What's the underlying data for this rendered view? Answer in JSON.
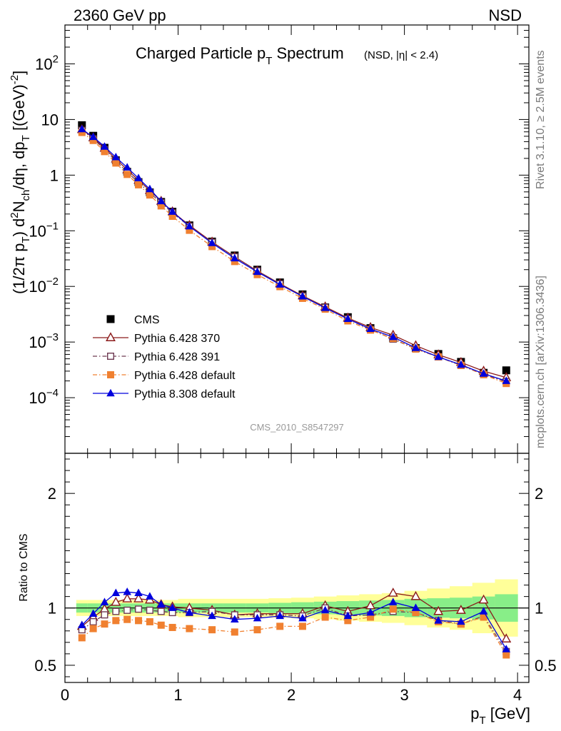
{
  "header": {
    "left": "2360 GeV pp",
    "right": "NSD"
  },
  "side_text": {
    "rivet": "Rivet 3.1.10, ≥ 2.5M events",
    "source": "mcplots.cern.ch [arXiv:1306.3436]"
  },
  "watermark": "CMS_2010_S8547297",
  "chart_data": [
    {
      "type": "scatter",
      "panel": "main",
      "title": "Charged Particle pT Spectrum",
      "title_main": "Charged Particle p",
      "title_sub": "T",
      "title_rest": " Spectrum",
      "title_cut": "(NSD, |η| < 2.4)",
      "ylabel": "(1/2π pT) d²Nch/dη, dpT [(GeV)⁻²]",
      "ylog": true,
      "ylim": [
        1e-05,
        500
      ],
      "xlim": [
        0,
        4.1
      ],
      "yticks": [
        {
          "value": 0.0001,
          "base": "10",
          "exp": "−4"
        },
        {
          "value": 0.001,
          "base": "10",
          "exp": "−3"
        },
        {
          "value": 0.01,
          "base": "10",
          "exp": "−2"
        },
        {
          "value": 0.1,
          "base": "10",
          "exp": "−1"
        },
        {
          "value": 1,
          "base": "1",
          "exp": ""
        },
        {
          "value": 10,
          "base": "10",
          "exp": ""
        },
        {
          "value": 100,
          "base": "10",
          "exp": "2"
        }
      ],
      "x": [
        0.15,
        0.25,
        0.35,
        0.45,
        0.55,
        0.65,
        0.75,
        0.85,
        0.95,
        1.1,
        1.3,
        1.5,
        1.7,
        1.9,
        2.1,
        2.3,
        2.5,
        2.7,
        2.9,
        3.1,
        3.3,
        3.5,
        3.7,
        3.9
      ],
      "legend_position": "lower-left",
      "series": [
        {
          "name": "CMS",
          "color": "#000000",
          "marker": "square-filled",
          "line": "none",
          "values": [
            7.9,
            5.1,
            3.1,
            1.85,
            1.15,
            0.75,
            0.49,
            0.33,
            0.22,
            0.125,
            0.064,
            0.036,
            0.02,
            0.0118,
            0.0072,
            0.0042,
            0.0028,
            0.00178,
            0.00117,
            0.00078,
            0.00061,
            0.00044,
            0.00028,
            0.00031
          ]
        },
        {
          "name": "Pythia 6.428 370",
          "color": "#8b1a1a",
          "marker": "triangle-open",
          "line": "solid",
          "values": [
            6.6,
            4.7,
            3.05,
            1.95,
            1.25,
            0.81,
            0.53,
            0.34,
            0.22,
            0.125,
            0.063,
            0.034,
            0.019,
            0.0112,
            0.0068,
            0.0043,
            0.0027,
            0.00183,
            0.00133,
            0.00086,
            0.00059,
            0.00043,
            0.0003,
            0.00023
          ]
        },
        {
          "name": "Pythia 6.428 391",
          "color": "#6e3a52",
          "marker": "square-open",
          "line": "dashdot",
          "values": [
            6.4,
            4.5,
            2.9,
            1.8,
            1.13,
            0.74,
            0.48,
            0.32,
            0.21,
            0.12,
            0.062,
            0.034,
            0.019,
            0.0111,
            0.0067,
            0.0042,
            0.0026,
            0.00168,
            0.00113,
            0.00075,
            0.00054,
            0.00038,
            0.00026,
            0.000195
          ]
        },
        {
          "name": "Pythia 6.428 default",
          "color": "#f08030",
          "marker": "square-filled",
          "line": "dashdot",
          "values": [
            5.85,
            4.2,
            2.65,
            1.65,
            1.03,
            0.67,
            0.44,
            0.28,
            0.182,
            0.102,
            0.052,
            0.028,
            0.0163,
            0.0099,
            0.0061,
            0.0039,
            0.0024,
            0.00164,
            0.00116,
            0.00075,
            0.00054,
            0.00038,
            0.00026,
            0.00018
          ]
        },
        {
          "name": "Pythia 8.308 default",
          "color": "#0000dd",
          "marker": "triangle-filled",
          "line": "solid",
          "values": [
            6.7,
            4.85,
            3.25,
            2.1,
            1.37,
            0.88,
            0.56,
            0.34,
            0.22,
            0.12,
            0.06,
            0.032,
            0.0182,
            0.0108,
            0.0066,
            0.0041,
            0.0026,
            0.00172,
            0.00123,
            0.00078,
            0.00054,
            0.00039,
            0.00027,
            0.0002
          ]
        }
      ]
    },
    {
      "type": "line",
      "panel": "ratio",
      "ylabel": "Ratio to CMS",
      "xlabel": "pT [GeV]",
      "xlabel_main": "p",
      "xlabel_sub": "T",
      "xlabel_rest": " [GeV]",
      "ylim": [
        0.35,
        2.35
      ],
      "xlim": [
        0,
        4.1
      ],
      "yticks": [
        0.5,
        1,
        2
      ],
      "xticks": [
        0,
        1,
        2,
        3,
        4
      ],
      "x": [
        0.15,
        0.25,
        0.35,
        0.45,
        0.55,
        0.65,
        0.75,
        0.85,
        0.95,
        1.1,
        1.3,
        1.5,
        1.7,
        1.9,
        2.1,
        2.3,
        2.5,
        2.7,
        2.9,
        3.1,
        3.3,
        3.5,
        3.7,
        3.9
      ],
      "bins": [
        0.1,
        0.2,
        0.3,
        0.4,
        0.5,
        0.6,
        0.7,
        0.8,
        0.9,
        1.0,
        1.2,
        1.4,
        1.6,
        1.8,
        2.0,
        2.2,
        2.4,
        2.6,
        2.8,
        3.0,
        3.2,
        3.4,
        3.6,
        3.8,
        4.0
      ],
      "band_inner": [
        0.04,
        0.04,
        0.04,
        0.04,
        0.04,
        0.04,
        0.04,
        0.04,
        0.04,
        0.04,
        0.04,
        0.04,
        0.04,
        0.045,
        0.05,
        0.055,
        0.06,
        0.065,
        0.07,
        0.08,
        0.085,
        0.09,
        0.1,
        0.12
      ],
      "band_outer": [
        0.07,
        0.07,
        0.07,
        0.07,
        0.07,
        0.07,
        0.07,
        0.07,
        0.07,
        0.08,
        0.08,
        0.08,
        0.08,
        0.085,
        0.09,
        0.1,
        0.11,
        0.12,
        0.13,
        0.15,
        0.17,
        0.19,
        0.22,
        0.25
      ],
      "band_colors": {
        "inner": "#88ee88",
        "outer": "#ffff99"
      },
      "series": [
        {
          "name": "Pythia 6.428 370",
          "color": "#8b1a1a",
          "marker": "triangle-open",
          "line": "solid",
          "values": [
            0.84,
            0.92,
            0.99,
            1.05,
            1.08,
            1.08,
            1.07,
            1.03,
            1.01,
            1.0,
            0.98,
            0.94,
            0.95,
            0.95,
            0.95,
            1.02,
            0.97,
            1.02,
            1.13,
            1.1,
            0.97,
            0.98,
            1.07,
            0.73
          ]
        },
        {
          "name": "Pythia 6.428 391",
          "color": "#6e3a52",
          "marker": "square-open",
          "line": "dashdot",
          "values": [
            0.81,
            0.88,
            0.94,
            0.97,
            0.98,
            0.99,
            0.98,
            0.97,
            0.96,
            0.96,
            0.97,
            0.94,
            0.94,
            0.94,
            0.93,
            1.0,
            0.93,
            0.94,
            0.97,
            0.96,
            0.89,
            0.86,
            0.93,
            0.62
          ]
        },
        {
          "name": "Pythia 6.428 default",
          "color": "#f08030",
          "marker": "square-filled",
          "line": "dashdot",
          "values": [
            0.74,
            0.82,
            0.86,
            0.89,
            0.9,
            0.89,
            0.88,
            0.85,
            0.83,
            0.82,
            0.81,
            0.79,
            0.81,
            0.84,
            0.84,
            0.92,
            0.89,
            0.92,
            0.99,
            0.96,
            0.88,
            0.86,
            0.92,
            0.59
          ]
        },
        {
          "name": "Pythia 8.308 default",
          "color": "#0000dd",
          "marker": "triangle-filled",
          "line": "solid",
          "values": [
            0.85,
            0.95,
            1.05,
            1.13,
            1.14,
            1.13,
            1.1,
            1.03,
            1.0,
            0.96,
            0.93,
            0.9,
            0.91,
            0.93,
            0.91,
            0.98,
            0.93,
            0.96,
            1.05,
            1.0,
            0.89,
            0.88,
            0.97,
            0.64
          ]
        }
      ]
    }
  ]
}
